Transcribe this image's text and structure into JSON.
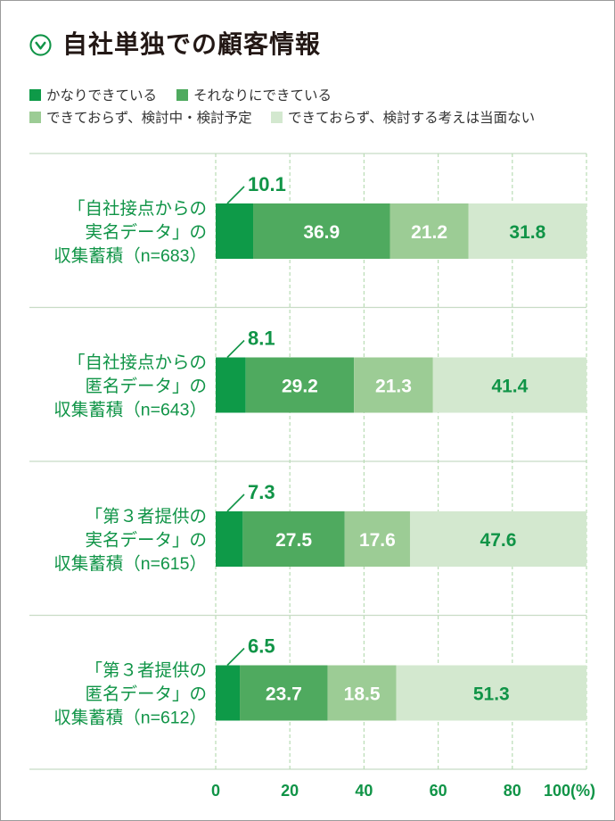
{
  "title_icon": "chevron-down-circle-icon",
  "colors": {
    "accent": "#109447",
    "title": "#231815",
    "legend_text": "#333333",
    "grid": "#b9dcb5",
    "separator": "#c8dcc5"
  },
  "chart_data": {
    "type": "bar",
    "orientation": "horizontal",
    "stacked": true,
    "title": "自社単独での顧客情報",
    "xlabel": "",
    "ylabel": "",
    "xlim": [
      0,
      100
    ],
    "grid": true,
    "legend_position": "top-left",
    "categories": [
      [
        "「自社接点からの",
        "実名データ」の",
        "収集蓄積（n=683）"
      ],
      [
        "「自社接点からの",
        "匿名データ」の",
        "収集蓄積（n=643）"
      ],
      [
        "「第３者提供の",
        "実名データ」の",
        "収集蓄積（n=615）"
      ],
      [
        "「第３者提供の",
        "匿名データ」の",
        "収集蓄積（n=612）"
      ]
    ],
    "series": [
      {
        "name": "かなりできている",
        "color": "#0e9a48",
        "label_color": "#109447",
        "values": [
          10.1,
          8.1,
          7.3,
          6.5
        ]
      },
      {
        "name": "それなりにできている",
        "color": "#4faa5f",
        "label_color": "#ffffff",
        "values": [
          36.9,
          29.2,
          27.5,
          23.7
        ]
      },
      {
        "name": "できておらず、検討中・検討予定",
        "color": "#9ccc95",
        "label_color": "#ffffff",
        "values": [
          21.2,
          21.3,
          17.6,
          18.5
        ]
      },
      {
        "name": "できておらず、検討する考えは当面ない",
        "color": "#d3e8cf",
        "label_color": "#109447",
        "values": [
          31.8,
          41.4,
          47.6,
          51.3
        ]
      }
    ],
    "x_tick_values": [
      0,
      20,
      40,
      60,
      80,
      100
    ],
    "x_tick_labels": [
      "0",
      "20",
      "40",
      "60",
      "80",
      "100(%)"
    ]
  }
}
